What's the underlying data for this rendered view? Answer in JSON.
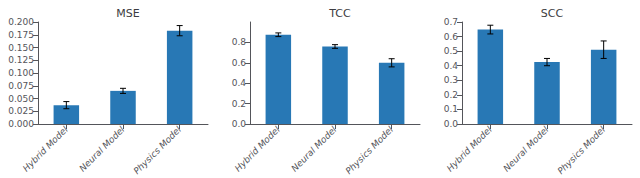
{
  "chart_data": [
    {
      "type": "bar",
      "title": "MSE",
      "categories": [
        "Hybrid Model",
        "Neural Model",
        "Physics Model"
      ],
      "values": [
        0.037,
        0.065,
        0.183
      ],
      "errors": [
        0.007,
        0.005,
        0.01
      ],
      "color": "#2878b5",
      "ylim": [
        0.0,
        0.2
      ],
      "yticks": [
        {
          "value": 0,
          "label": "0.000"
        },
        0.025,
        {
          "value": 0.05,
          "label": "0.050"
        },
        0.075,
        {
          "value": 0.1,
          "label": "0.100"
        },
        0.125,
        {
          "value": 0.15,
          "label": "0.150"
        },
        0.175,
        {
          "value": 0.2,
          "label": "0.200"
        }
      ],
      "grid": false
    },
    {
      "type": "bar",
      "title": "TCC",
      "categories": [
        "Hybrid Model",
        "Neural Model",
        "Physics Model"
      ],
      "values": [
        0.875,
        0.76,
        0.6
      ],
      "errors": [
        0.018,
        0.018,
        0.04
      ],
      "color": "#2878b5",
      "ylim": [
        0.0,
        1.0
      ],
      "yticks": [
        {
          "value": 0,
          "label": "0.0"
        },
        0.2,
        0.4,
        0.6,
        0.8
      ],
      "grid": false
    },
    {
      "type": "bar",
      "title": "SCC",
      "categories": [
        "Hybrid Model",
        "Neural Model",
        "Physics Model"
      ],
      "values": [
        0.648,
        0.425,
        0.51
      ],
      "errors": [
        0.03,
        0.025,
        0.06
      ],
      "color": "#2878b5",
      "ylim": [
        0.0,
        0.7
      ],
      "yticks": [
        {
          "value": 0,
          "label": "0.0"
        },
        0.1,
        0.2,
        0.3,
        0.4,
        0.5,
        0.6,
        0.7
      ],
      "grid": false
    }
  ]
}
